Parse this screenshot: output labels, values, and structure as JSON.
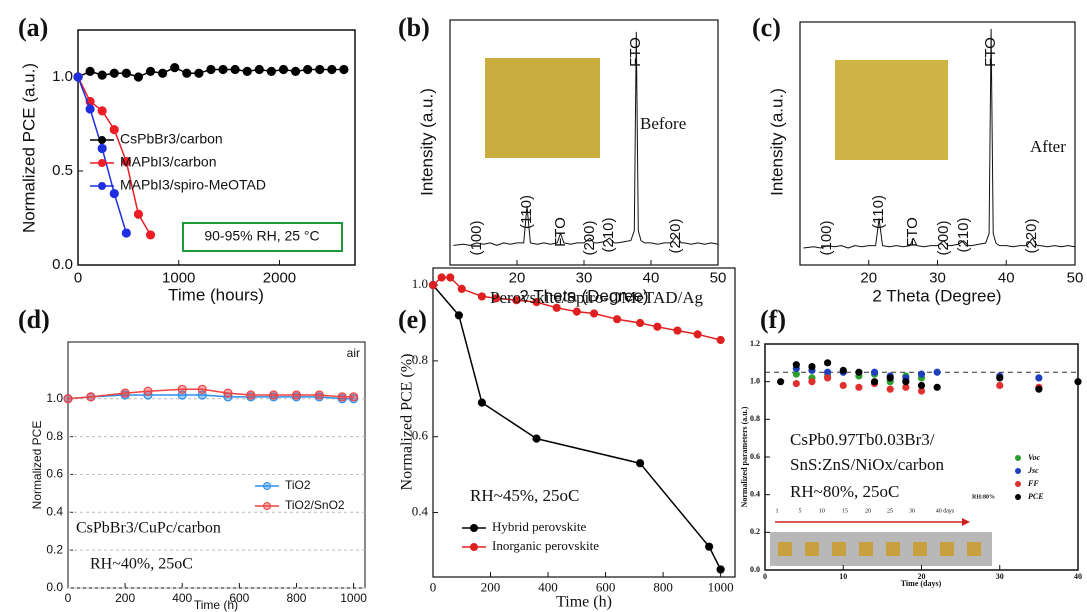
{
  "chart_data": [
    {
      "type": "line",
      "panel_label": "(a)",
      "x_label": "Time (hours)",
      "y_label": "Normalized PCE (a.u.)",
      "xlim": [
        0,
        2750
      ],
      "xticks": [
        0,
        1000,
        2000
      ],
      "ylim": [
        0,
        1.25
      ],
      "yticks": [
        {
          "value": 0,
          "label": "0.0"
        },
        {
          "value": 0.5,
          "label": "0.5"
        },
        {
          "value": 1,
          "label": "1.0"
        }
      ],
      "series": [
        {
          "name": "CsPbBr3/carbon",
          "color": "#000000",
          "x": [
            0,
            120,
            240,
            360,
            480,
            600,
            720,
            840,
            960,
            1080,
            1200,
            1320,
            1440,
            1560,
            1680,
            1800,
            1920,
            2040,
            2160,
            2280,
            2400,
            2520,
            2640
          ],
          "values": [
            1.0,
            1.03,
            1.01,
            1.02,
            1.02,
            1.0,
            1.03,
            1.02,
            1.05,
            1.02,
            1.02,
            1.04,
            1.04,
            1.04,
            1.03,
            1.04,
            1.03,
            1.04,
            1.03,
            1.04,
            1.04,
            1.04,
            1.04
          ]
        },
        {
          "name": "MAPbI3/carbon",
          "color": "#ee1c25",
          "x": [
            0,
            120,
            240,
            360,
            480,
            600,
            720
          ],
          "values": [
            1.0,
            0.87,
            0.82,
            0.72,
            0.55,
            0.27,
            0.16
          ]
        },
        {
          "name": "MAPbI3/spiro-MeOTAD",
          "color": "#1f2fe0",
          "x": [
            0,
            120,
            240,
            360,
            480
          ],
          "values": [
            1.0,
            0.83,
            0.62,
            0.38,
            0.17
          ]
        }
      ],
      "annotations": [
        "90-95% RH, 25 °C"
      ]
    },
    {
      "type": "line",
      "panel_label": "(b)",
      "x_label": "2 Theta (Degree)",
      "y_label": "Intensity (a.u.)",
      "xlim": [
        10,
        50
      ],
      "xticks": [
        20,
        30,
        40,
        50
      ],
      "ylim": [
        0,
        100
      ],
      "color": "#111111",
      "x": [
        10.5,
        12,
        13,
        14,
        15,
        16,
        17,
        18,
        19,
        20,
        21,
        21.5,
        22,
        23,
        24,
        25,
        26,
        26.5,
        27,
        28,
        29,
        30,
        30.9,
        31.5,
        32,
        33,
        33.8,
        34.5,
        35,
        36,
        37,
        37.5,
        37.8,
        38.1,
        38.5,
        39,
        40,
        41,
        42,
        43,
        43.8,
        44.5,
        45,
        46,
        47,
        48,
        49,
        50
      ],
      "values": [
        8,
        8.5,
        8,
        9,
        8.5,
        9,
        8,
        9,
        8.5,
        9,
        9,
        24,
        9,
        8.5,
        9,
        8.5,
        9,
        13,
        9,
        8.5,
        9,
        9,
        11,
        9,
        9,
        9.5,
        11,
        9,
        9,
        9.5,
        10,
        14,
        95,
        14,
        10,
        9,
        9,
        8.5,
        9,
        9,
        12,
        9,
        9,
        8.5,
        9,
        8.5,
        9,
        8.5
      ],
      "annotations": [
        "(100)",
        "(110)",
        "FTO",
        "(200)",
        "(210)",
        "FTO",
        "(220)",
        "Before"
      ]
    },
    {
      "type": "line",
      "panel_label": "(c)",
      "x_label": "2 Theta (Degree)",
      "y_label": "Intensity (a.u.)",
      "xlim": [
        10,
        50
      ],
      "xticks": [
        20,
        30,
        40,
        50
      ],
      "ylim": [
        0,
        100
      ],
      "color": "#111111",
      "x": [
        10.5,
        12,
        13,
        14,
        15,
        16,
        17,
        18,
        19,
        20,
        21,
        21.5,
        22,
        23,
        24,
        25,
        26,
        26.5,
        27,
        28,
        29,
        30,
        30.9,
        31.5,
        32,
        33,
        33.8,
        34.5,
        35,
        36,
        37,
        37.5,
        37.8,
        38.1,
        38.5,
        39,
        40,
        41,
        42,
        43,
        43.8,
        44.5,
        45,
        46,
        47,
        48,
        49,
        50
      ],
      "values": [
        7,
        7.5,
        7,
        8,
        7.5,
        8,
        7,
        8,
        7.5,
        8,
        8,
        19,
        8,
        7.5,
        8,
        7.5,
        8,
        11,
        8,
        7.5,
        8,
        8,
        10,
        8,
        8,
        8.5,
        10,
        8,
        8,
        8.5,
        9,
        13,
        97,
        13,
        9,
        8,
        8,
        7.5,
        8,
        8,
        11,
        8,
        8,
        7.5,
        8,
        7.5,
        8,
        7.5
      ],
      "annotations": [
        "(100)",
        "(110)",
        "FTO",
        "(200)",
        "(210)",
        "FTO",
        "(220)",
        "After"
      ]
    },
    {
      "type": "line",
      "panel_label": "(d)",
      "x_label": "Time (h)",
      "y_label": "Normalized PCE",
      "xlim": [
        0,
        1040
      ],
      "xticks": [
        0,
        200,
        400,
        600,
        800,
        1000
      ],
      "ylim": [
        0,
        1.3
      ],
      "yticks": [
        {
          "value": 0,
          "label": "0.0"
        },
        {
          "value": 0.2,
          "label": "0.2"
        },
        {
          "value": 0.4,
          "label": "0.4"
        },
        {
          "value": 0.6,
          "label": "0.6"
        },
        {
          "value": 0.8,
          "label": "0.8"
        },
        {
          "value": 1,
          "label": "1.0"
        }
      ],
      "grid": true,
      "series": [
        {
          "name": "TiO2",
          "color": "#2f8fe8",
          "x": [
            0,
            80,
            200,
            280,
            400,
            470,
            560,
            640,
            720,
            800,
            880,
            960,
            1000
          ],
          "values": [
            1.0,
            1.01,
            1.02,
            1.02,
            1.02,
            1.02,
            1.01,
            1.01,
            1.01,
            1.01,
            1.01,
            1.0,
            1.0
          ]
        },
        {
          "name": "TiO2/SnO2",
          "color": "#ee4444",
          "x": [
            0,
            80,
            200,
            280,
            400,
            470,
            560,
            640,
            720,
            800,
            880,
            960,
            1000
          ],
          "values": [
            1.0,
            1.01,
            1.03,
            1.04,
            1.05,
            1.05,
            1.03,
            1.02,
            1.02,
            1.02,
            1.02,
            1.01,
            1.01
          ]
        }
      ],
      "annotations": [
        "air",
        "CsPbBr3/CuPc/carbon",
        "RH~40%, 25oC"
      ]
    },
    {
      "type": "line",
      "panel_label": "(e)",
      "x_label": "Time (h)",
      "y_label": "Normalized PCE (%)",
      "xlim": [
        0,
        1050
      ],
      "xticks": [
        0,
        200,
        400,
        600,
        800,
        1000
      ],
      "ylim": [
        0.23,
        1.045
      ],
      "yticks": [
        {
          "value": 0.4,
          "label": "0.4"
        },
        {
          "value": 0.6,
          "label": "0.6"
        },
        {
          "value": 0.8,
          "label": "0.8"
        },
        {
          "value": 1,
          "label": "1.0"
        }
      ],
      "series": [
        {
          "name": "Hybrid perovskite",
          "color": "#000000",
          "x": [
            0,
            90,
            170,
            360,
            720,
            960,
            1000
          ],
          "values": [
            1.0,
            0.92,
            0.69,
            0.595,
            0.53,
            0.31,
            0.25
          ]
        },
        {
          "name": "Inorganic perovskite",
          "color": "#e02020",
          "x": [
            0,
            30,
            60,
            100,
            170,
            220,
            290,
            360,
            430,
            500,
            560,
            640,
            720,
            780,
            850,
            920,
            1000
          ],
          "values": [
            1.0,
            1.02,
            1.02,
            0.99,
            0.97,
            0.965,
            0.96,
            0.955,
            0.94,
            0.93,
            0.925,
            0.91,
            0.9,
            0.89,
            0.88,
            0.87,
            0.855
          ]
        }
      ],
      "annotations": [
        "Perovskite/Spiro-OMeTAD/Ag",
        "RH~45%, 25oC"
      ]
    },
    {
      "type": "scatter",
      "panel_label": "(f)",
      "x_label": "Time (days)",
      "y_label": "Normalized parameters (a.u.)",
      "xlim": [
        0,
        40
      ],
      "xticks": [
        0,
        10,
        20,
        30,
        40
      ],
      "ylim": [
        0,
        1.2
      ],
      "yticks": [
        {
          "value": 0,
          "label": "0.0"
        },
        {
          "value": 0.2,
          "label": "0.2"
        },
        {
          "value": 0.4,
          "label": "0.4"
        },
        {
          "value": 0.6,
          "label": "0.6"
        },
        {
          "value": 0.8,
          "label": "0.8"
        },
        {
          "value": 1,
          "label": "1.0"
        },
        {
          "value": 1.2,
          "label": "1.2"
        }
      ],
      "reference_line": 1.05,
      "series": [
        {
          "name": "Voc",
          "color": "#2ca02c",
          "x": [
            4,
            6,
            8,
            10,
            12,
            14,
            16,
            18,
            20
          ],
          "values": [
            1.04,
            1.02,
            1.03,
            1.05,
            1.03,
            1.04,
            1.0,
            1.03,
            1.02
          ]
        },
        {
          "name": "Jsc",
          "color": "#1f3fbf",
          "x": [
            4,
            6,
            8,
            10,
            14,
            16,
            18,
            20,
            22,
            30,
            35
          ],
          "values": [
            1.07,
            1.06,
            1.05,
            1.05,
            1.05,
            1.03,
            1.02,
            1.04,
            1.05,
            1.03,
            1.02
          ]
        },
        {
          "name": "FF",
          "color": "#e03030",
          "x": [
            4,
            6,
            8,
            10,
            12,
            14,
            16,
            18,
            20,
            30,
            35
          ],
          "values": [
            0.99,
            1.0,
            1.02,
            0.98,
            0.97,
            0.99,
            0.96,
            0.97,
            0.95,
            0.98,
            0.97
          ]
        },
        {
          "name": "PCE",
          "color": "#000000",
          "x": [
            2,
            4,
            6,
            8,
            10,
            12,
            14,
            16,
            18,
            20,
            22,
            30,
            35,
            40
          ],
          "values": [
            1.0,
            1.09,
            1.08,
            1.1,
            1.06,
            1.05,
            1.0,
            1.02,
            1.0,
            0.98,
            0.97,
            1.02,
            0.96,
            1.0
          ]
        }
      ],
      "annotations": [
        "CsPb0.97Tb0.03Br3/",
        "SnS:ZnS/NiOx/carbon",
        "RH~80%, 25oC",
        "RH:80%",
        "1",
        "5",
        "10",
        "15",
        "20",
        "25",
        "30",
        "40 days"
      ]
    }
  ]
}
